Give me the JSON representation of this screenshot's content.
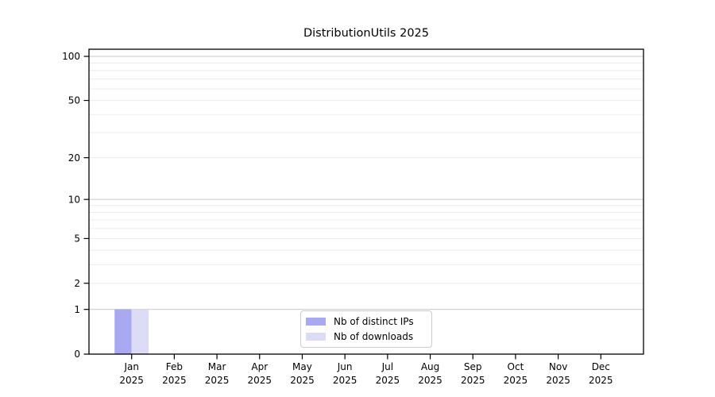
{
  "chart_data": {
    "type": "bar",
    "title": "DistributionUtils 2025",
    "categories": [
      "Jan 2025",
      "Feb 2025",
      "Mar 2025",
      "Apr 2025",
      "May 2025",
      "Jun 2025",
      "Jul 2025",
      "Aug 2025",
      "Sep 2025",
      "Oct 2025",
      "Nov 2025",
      "Dec 2025"
    ],
    "category_line1": [
      "Jan",
      "Feb",
      "Mar",
      "Apr",
      "May",
      "Jun",
      "Jul",
      "Aug",
      "Sep",
      "Oct",
      "Nov",
      "Dec"
    ],
    "category_line2": "2025",
    "series": [
      {
        "name": "Nb of distinct IPs",
        "color": "#a9a9f2",
        "values": [
          1,
          0,
          0,
          0,
          0,
          0,
          0,
          0,
          0,
          0,
          0,
          0
        ]
      },
      {
        "name": "Nb of downloads",
        "color": "#dcdcf7",
        "values": [
          1,
          0,
          0,
          0,
          0,
          0,
          0,
          0,
          0,
          0,
          0,
          0
        ]
      }
    ],
    "yaxis": {
      "scale": "log1p",
      "ylim": [
        0,
        100
      ],
      "ticks": [
        0,
        1,
        2,
        5,
        10,
        20,
        50,
        100
      ],
      "major_gridlines": [
        1,
        10,
        100
      ],
      "minor_gridlines": [
        2,
        3,
        4,
        5,
        6,
        7,
        8,
        9,
        20,
        30,
        40,
        50,
        60,
        70,
        80,
        90
      ]
    },
    "legend": {
      "position": "bottom-center",
      "entries": [
        "Nb of distinct IPs",
        "Nb of downloads"
      ]
    },
    "colors": {
      "background": "#ffffff",
      "axis": "#000000",
      "major_grid": "#c9c9c9",
      "minor_grid": "#ececec",
      "legend_border": "#cccccc"
    }
  }
}
